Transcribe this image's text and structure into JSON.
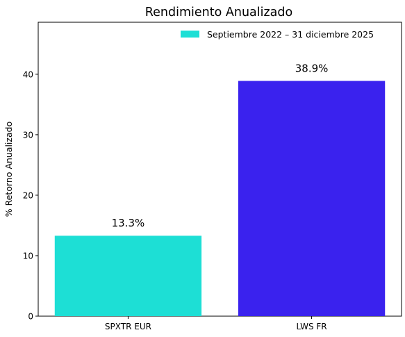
{
  "chart_data": {
    "type": "bar",
    "title": "Rendimiento Anualizado",
    "xlabel": "",
    "ylabel": "% Retorno Anualizado",
    "categories": [
      "SPXTR EUR",
      "LWS FR"
    ],
    "series": [
      {
        "name": "Septiembre 2022 – 31 diciembre 2025",
        "values": [
          13.3,
          38.9
        ],
        "colors": [
          "#1ddfd5",
          "#3a22ee"
        ]
      }
    ],
    "data_labels": [
      "13.3%",
      "38.9%"
    ],
    "ylim": [
      0,
      48.6
    ],
    "yticks": [
      0,
      10,
      20,
      30,
      40
    ],
    "yticks_labels": [
      "0",
      "10",
      "20",
      "30",
      "40"
    ],
    "legend_position": "top-right",
    "grid": false
  }
}
